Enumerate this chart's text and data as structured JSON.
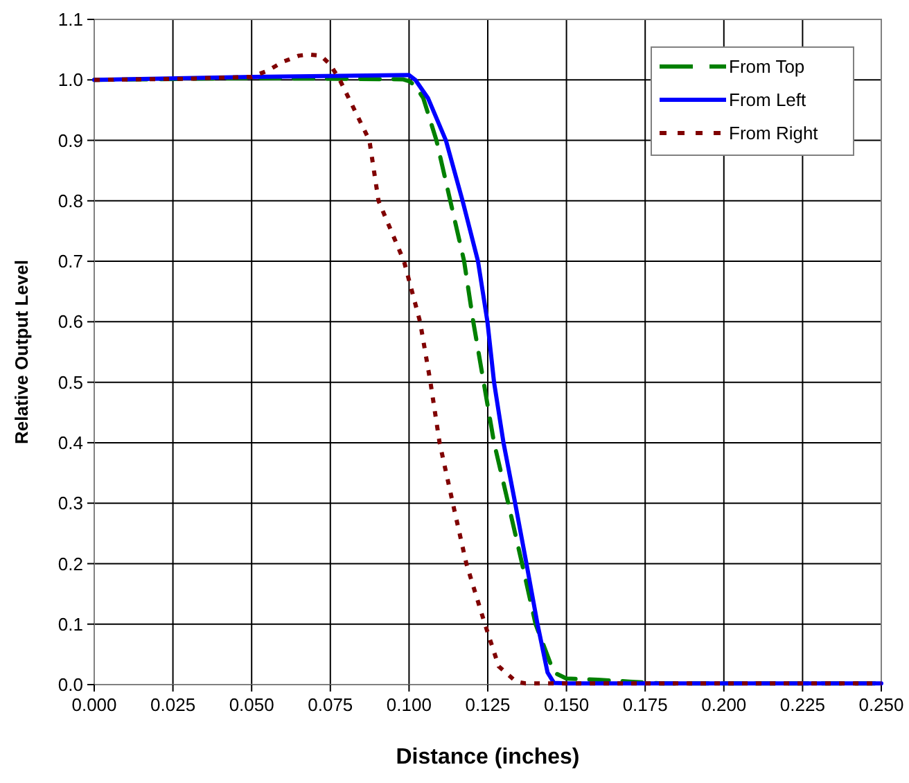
{
  "chart_data": {
    "type": "line",
    "xlabel": "Distance (inches)",
    "ylabel": "Relative Output Level",
    "xlim": [
      0,
      0.25
    ],
    "xticks": [
      {
        "value": 0,
        "label": "0.000"
      },
      {
        "value": 0.025,
        "label": "0.025"
      },
      {
        "value": 0.05,
        "label": "0.050"
      },
      {
        "value": 0.075,
        "label": "0.075"
      },
      {
        "value": 0.1,
        "label": "0.100"
      },
      {
        "value": 0.125,
        "label": "0.125"
      },
      {
        "value": 0.15,
        "label": "0.150"
      },
      {
        "value": 0.175,
        "label": "0.175"
      },
      {
        "value": 0.2,
        "label": "0.200"
      },
      {
        "value": 0.225,
        "label": "0.225"
      },
      {
        "value": 0.25,
        "label": "0.250"
      }
    ],
    "ylim": [
      0,
      1.1
    ],
    "yticks": [
      {
        "value": 0,
        "label": "0.0"
      },
      {
        "value": 0.1,
        "label": "0.1"
      },
      {
        "value": 0.2,
        "label": "0.2"
      },
      {
        "value": 0.3,
        "label": "0.3"
      },
      {
        "value": 0.4,
        "label": "0.4"
      },
      {
        "value": 0.5,
        "label": "0.5"
      },
      {
        "value": 0.6,
        "label": "0.6"
      },
      {
        "value": 0.7,
        "label": "0.7"
      },
      {
        "value": 0.8,
        "label": "0.8"
      },
      {
        "value": 0.9,
        "label": "0.9"
      },
      {
        "value": 1,
        "label": "1.0"
      },
      {
        "value": 1.1,
        "label": "1.1"
      }
    ],
    "grid": true,
    "legend": "top right",
    "series": [
      {
        "name": "From Top",
        "color": "#008000",
        "line_style": "dashed",
        "x": [
          0,
          0.05,
          0.098,
          0.1,
          0.102,
          0.1045,
          0.1087,
          0.1131,
          0.1175,
          0.1204,
          0.1237,
          0.127,
          0.1315,
          0.1359,
          0.1402,
          0.146,
          0.15,
          0.16,
          0.17,
          0.18,
          0.25
        ],
        "values": [
          1.0,
          1.003,
          1.001,
          0.998,
          0.99,
          0.97,
          0.9,
          0.8,
          0.7,
          0.6,
          0.5,
          0.4,
          0.3,
          0.2,
          0.1,
          0.02,
          0.01,
          0.008,
          0.005,
          0.002,
          0.002
        ]
      },
      {
        "name": "From Left",
        "color": "#0000ff",
        "line_style": "solid",
        "x": [
          0,
          0.05,
          0.1,
          0.102,
          0.106,
          0.1117,
          0.117,
          0.1219,
          0.1249,
          0.127,
          0.13,
          0.1337,
          0.1373,
          0.1408,
          0.144,
          0.146,
          0.15,
          0.25
        ],
        "values": [
          1.0,
          1.005,
          1.008,
          1.0,
          0.97,
          0.9,
          0.8,
          0.7,
          0.6,
          0.5,
          0.4,
          0.3,
          0.2,
          0.1,
          0.02,
          0.003,
          0.002,
          0.002
        ]
      },
      {
        "name": "From Right",
        "color": "#800000",
        "line_style": "dotted",
        "x": [
          0,
          0.03,
          0.05,
          0.055,
          0.06,
          0.065,
          0.068,
          0.072,
          0.075,
          0.078,
          0.0874,
          0.0903,
          0.0984,
          0.1035,
          0.1068,
          0.1097,
          0.1139,
          0.1182,
          0.1241,
          0.1285,
          0.134,
          0.137,
          0.25
        ],
        "values": [
          1.0,
          1.002,
          1.005,
          1.015,
          1.03,
          1.04,
          1.042,
          1.04,
          1.025,
          1.0,
          0.9,
          0.8,
          0.7,
          0.6,
          0.5,
          0.4,
          0.3,
          0.2,
          0.1,
          0.03,
          0.005,
          0.002,
          0.002
        ]
      }
    ]
  }
}
